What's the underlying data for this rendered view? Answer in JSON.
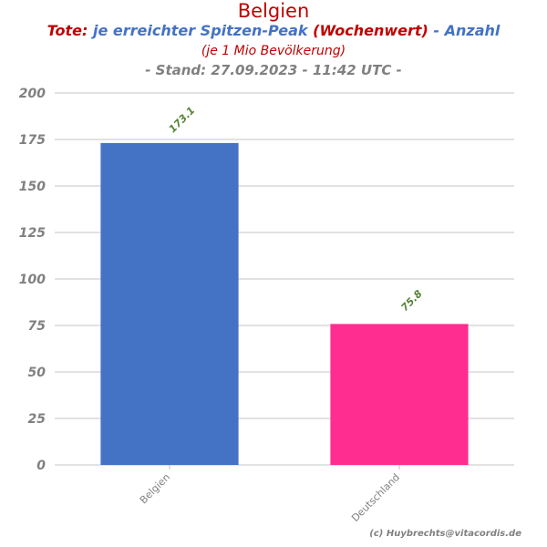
{
  "header": {
    "title": "Belgien",
    "subtitle_part1": "Tote:",
    "subtitle_part2": "je erreichter Spitzen-Peak",
    "subtitle_part3": "(Wochenwert)",
    "subtitle_part4": "- Anzahl",
    "subtitle_line2": "(je 1 Mio Bevölkerung)",
    "stand": "- Stand: 27.09.2023 - 11:42 UTC -"
  },
  "credit": "(c) Huybrechts@vitacordis.de",
  "chart_data": {
    "type": "bar",
    "categories": [
      "Belgien",
      "Deutschland"
    ],
    "values": [
      173.1,
      75.8
    ],
    "value_labels": [
      "173.1",
      "75.8"
    ],
    "bar_colors": [
      "#4472c4",
      "#ff2d8f"
    ],
    "ylim": [
      0,
      200
    ],
    "yticks": [
      0,
      25,
      50,
      75,
      100,
      125,
      150,
      175,
      200
    ],
    "grid": true,
    "colors": {
      "tick_label": "#808080",
      "data_label": "#548235",
      "grid": "#d9d9d9"
    }
  }
}
